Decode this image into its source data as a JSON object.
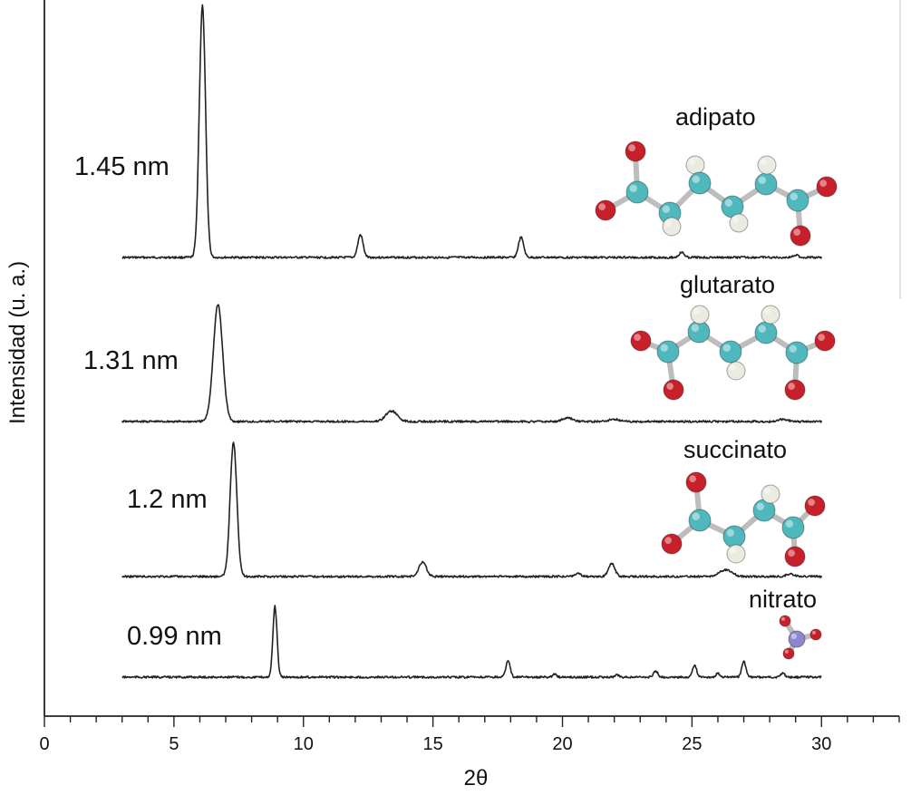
{
  "chart_data": {
    "type": "line",
    "title": "",
    "xlabel": "2θ",
    "ylabel": "Intensidad (u. a.)",
    "xlim": [
      0,
      33
    ],
    "x_ticks": [
      0,
      5,
      10,
      15,
      20,
      25,
      30
    ],
    "grid": false,
    "legend": "none",
    "series": [
      {
        "name": "adipato",
        "d_spacing": "1.45 nm",
        "x_range": [
          3,
          30
        ],
        "peaks": [
          {
            "x": 6.1,
            "rel_intensity": 1.0,
            "width": 0.12
          },
          {
            "x": 12.2,
            "rel_intensity": 0.09,
            "width": 0.1
          },
          {
            "x": 18.4,
            "rel_intensity": 0.08,
            "width": 0.1
          },
          {
            "x": 24.6,
            "rel_intensity": 0.02,
            "width": 0.1
          },
          {
            "x": 29.0,
            "rel_intensity": 0.01,
            "width": 0.1
          }
        ]
      },
      {
        "name": "glutarato",
        "d_spacing": "1.31 nm",
        "x_range": [
          3,
          30
        ],
        "peaks": [
          {
            "x": 6.7,
            "rel_intensity": 1.0,
            "width": 0.18
          },
          {
            "x": 13.4,
            "rel_intensity": 0.09,
            "width": 0.22
          },
          {
            "x": 20.2,
            "rel_intensity": 0.03,
            "width": 0.2
          },
          {
            "x": 22.0,
            "rel_intensity": 0.02,
            "width": 0.2
          },
          {
            "x": 28.5,
            "rel_intensity": 0.02,
            "width": 0.2
          }
        ]
      },
      {
        "name": "succinato",
        "d_spacing": "1.2 nm",
        "x_range": [
          3,
          30
        ],
        "peaks": [
          {
            "x": 7.3,
            "rel_intensity": 1.0,
            "width": 0.13
          },
          {
            "x": 14.6,
            "rel_intensity": 0.11,
            "width": 0.14
          },
          {
            "x": 20.6,
            "rel_intensity": 0.02,
            "width": 0.12
          },
          {
            "x": 21.9,
            "rel_intensity": 0.1,
            "width": 0.12
          },
          {
            "x": 26.3,
            "rel_intensity": 0.05,
            "width": 0.25
          },
          {
            "x": 28.8,
            "rel_intensity": 0.02,
            "width": 0.15
          }
        ]
      },
      {
        "name": "nitrato",
        "d_spacing": "0.99 nm",
        "x_range": [
          3,
          30
        ],
        "peaks": [
          {
            "x": 8.9,
            "rel_intensity": 1.0,
            "width": 0.08
          },
          {
            "x": 17.9,
            "rel_intensity": 0.24,
            "width": 0.08
          },
          {
            "x": 19.7,
            "rel_intensity": 0.04,
            "width": 0.08
          },
          {
            "x": 22.1,
            "rel_intensity": 0.03,
            "width": 0.08
          },
          {
            "x": 23.6,
            "rel_intensity": 0.09,
            "width": 0.08
          },
          {
            "x": 25.1,
            "rel_intensity": 0.17,
            "width": 0.08
          },
          {
            "x": 26.0,
            "rel_intensity": 0.05,
            "width": 0.08
          },
          {
            "x": 27.0,
            "rel_intensity": 0.22,
            "width": 0.08
          },
          {
            "x": 28.5,
            "rel_intensity": 0.06,
            "width": 0.08
          }
        ]
      }
    ],
    "colors": {
      "trace": "#222222",
      "oxygen": "#c8202a",
      "carbon": "#4fb8bd",
      "hydrogen": "#ecebe2",
      "nitrogen": "#8e86cc",
      "bond": "#bdbdbd"
    },
    "molecules": {
      "adipato": "adipate-molecule",
      "glutarato": "glutarate-molecule",
      "succinato": "succinate-molecule",
      "nitrato": "nitrate-molecule"
    }
  }
}
